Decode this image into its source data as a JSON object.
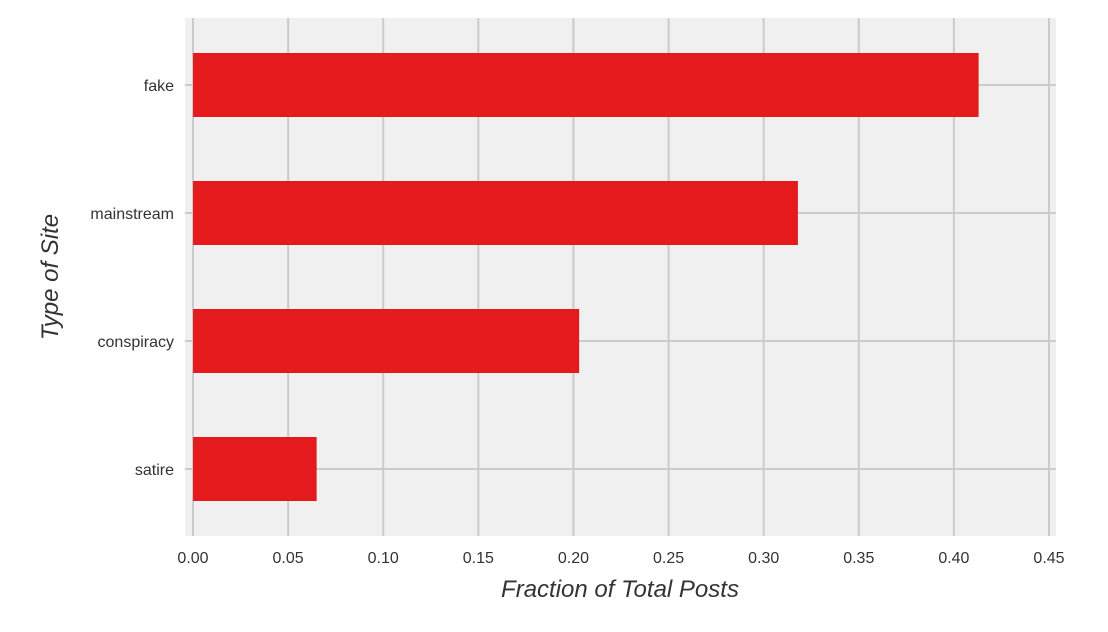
{
  "chart_data": {
    "type": "bar",
    "orientation": "horizontal",
    "title": "",
    "xlabel": "Fraction of Total Posts",
    "ylabel": "Type of Site",
    "categories": [
      "fake",
      "mainstream",
      "conspiracy",
      "satire"
    ],
    "values": [
      0.413,
      0.318,
      0.203,
      0.065
    ],
    "xlim": [
      0.0,
      0.45
    ],
    "xticks": [
      "0.00",
      "0.05",
      "0.10",
      "0.15",
      "0.20",
      "0.25",
      "0.30",
      "0.35",
      "0.40",
      "0.45"
    ],
    "grid": true,
    "legend": "none",
    "colors": {
      "bar": "#e41a1c",
      "plot_background": "#f0f0f0",
      "grid": "#cbcbcb"
    }
  }
}
